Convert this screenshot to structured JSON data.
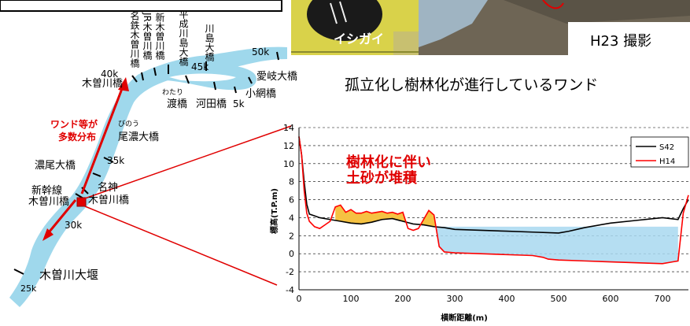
{
  "map": {
    "labels": {
      "kiso_bridge": "木曽川橋",
      "km40": "40k",
      "km35": "35k",
      "km30": "30k",
      "km25": "25k",
      "km50": "50k",
      "km45": "45k",
      "km5": "5k",
      "meitetsu": "名鉄木曽川橋",
      "jr": "JR木曽川橋",
      "shin": "新木曽川橋",
      "heisei": "平成川島大橋",
      "kawashima": "川島大橋",
      "aigi": "愛岐大橋",
      "koami": "小網橋",
      "watari_ruby": "わたり",
      "watari": "渡橋",
      "kawada": "河田橋",
      "wando_1": "ワンド等が",
      "wando_2": "多数分布",
      "bino_ruby": "びのう",
      "bino": "尾濃大橋",
      "nobi": "濃尾大橋",
      "shinkansen_1": "新幹線",
      "shinkansen_2": "木曽川橋",
      "meishin_1": "名神",
      "meishin_2": "木曽川橋",
      "weir": "木曽川大堰"
    }
  },
  "photos": {
    "mussel_label": "イシガイ",
    "photo_date": "H23 撮影",
    "photo_title": "孤立化し樹林化が進行しているワンド"
  },
  "annotation": {
    "line1": "樹林化に伴い",
    "line2": "土砂が堆積"
  },
  "chart_data": {
    "type": "line",
    "title": "",
    "xlabel": "横断距離(m)",
    "ylabel": "標高(T.P.m)",
    "xlim": [
      0,
      750
    ],
    "ylim": [
      -4,
      14
    ],
    "xticks": [
      0,
      100,
      200,
      300,
      400,
      500,
      600,
      700
    ],
    "yticks": [
      -4,
      -2,
      0,
      2,
      4,
      6,
      8,
      10,
      12,
      14
    ],
    "grid": "dashed-horizontal",
    "legend_position": "top-right",
    "series": [
      {
        "name": "S42",
        "color": "#000000",
        "x": [
          0,
          5,
          10,
          15,
          20,
          30,
          40,
          60,
          80,
          100,
          120,
          140,
          160,
          180,
          200,
          220,
          240,
          260,
          280,
          300,
          350,
          400,
          450,
          500,
          520,
          550,
          600,
          650,
          700,
          730,
          740,
          750
        ],
        "y": [
          13,
          11,
          8,
          5.5,
          4.4,
          4.2,
          4.0,
          3.8,
          3.6,
          3.4,
          3.3,
          3.5,
          3.8,
          3.9,
          3.6,
          3.3,
          3.2,
          3.0,
          2.9,
          2.7,
          2.6,
          2.5,
          2.4,
          2.3,
          2.5,
          2.9,
          3.4,
          3.7,
          4.0,
          3.8,
          5.0,
          6.0
        ]
      },
      {
        "name": "H14",
        "color": "#ff0000",
        "x": [
          0,
          5,
          10,
          15,
          20,
          30,
          40,
          50,
          60,
          70,
          80,
          90,
          100,
          110,
          120,
          130,
          140,
          150,
          160,
          170,
          180,
          190,
          200,
          210,
          220,
          230,
          240,
          250,
          260,
          270,
          280,
          300,
          350,
          400,
          450,
          470,
          480,
          500,
          550,
          600,
          650,
          700,
          720,
          730,
          740,
          750
        ],
        "y": [
          13,
          11,
          7,
          4.5,
          3.6,
          3.0,
          2.8,
          3.2,
          3.6,
          5.2,
          5.4,
          4.6,
          4.9,
          4.5,
          4.5,
          4.7,
          4.5,
          4.6,
          4.7,
          4.5,
          4.6,
          4.4,
          4.6,
          2.8,
          2.6,
          2.8,
          3.8,
          4.8,
          4.3,
          0.8,
          0.2,
          0.1,
          0.0,
          -0.1,
          -0.2,
          -0.4,
          -0.6,
          -0.7,
          -0.8,
          -0.9,
          -1.0,
          -1.1,
          -0.9,
          -0.8,
          4.5,
          6.5
        ]
      }
    ],
    "fills": [
      {
        "name": "sediment",
        "color": "#f5c242",
        "x_range": [
          70,
          270
        ]
      },
      {
        "name": "water",
        "color": "#a8d8f0",
        "x_range": [
          265,
          730
        ],
        "water_level": 3.0
      }
    ]
  }
}
